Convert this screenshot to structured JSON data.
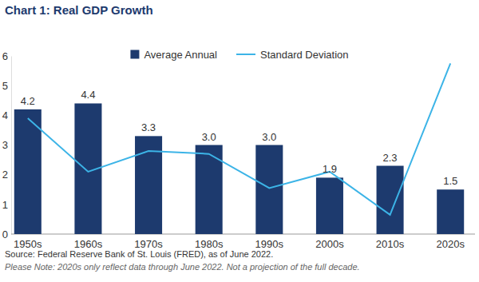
{
  "chart_data": {
    "type": "bar",
    "title": "Chart 1: Real GDP Growth",
    "categories": [
      "1950s",
      "1960s",
      "1970s",
      "1980s",
      "1990s",
      "2000s",
      "2010s",
      "2020s"
    ],
    "series": [
      {
        "name": "Average Annual",
        "type": "bar",
        "color": "#1d3a6e",
        "values": [
          4.2,
          4.4,
          3.3,
          3.0,
          3.0,
          1.9,
          2.3,
          1.5
        ],
        "value_labels": [
          "4.2",
          "4.4",
          "3.3",
          "3.0",
          "3.0",
          "1.9",
          "2.3",
          "1.5"
        ]
      },
      {
        "name": "Standard Deviation",
        "type": "line",
        "color": "#3cb4e7",
        "values": [
          3.9,
          2.1,
          2.8,
          2.7,
          1.55,
          2.1,
          0.65,
          5.75
        ]
      }
    ],
    "ylim": [
      0,
      6
    ],
    "yticks": [
      0,
      1,
      2,
      3,
      4,
      5,
      6
    ],
    "grid": false,
    "legend": "top",
    "data_labels": true,
    "annotations": [
      "Source: Federal Reserve Bank of St. Louis (FRED), as of June 2022.",
      "Please Note: 2020s only reflect data through June 2022. Not a projection of the full decade."
    ]
  }
}
